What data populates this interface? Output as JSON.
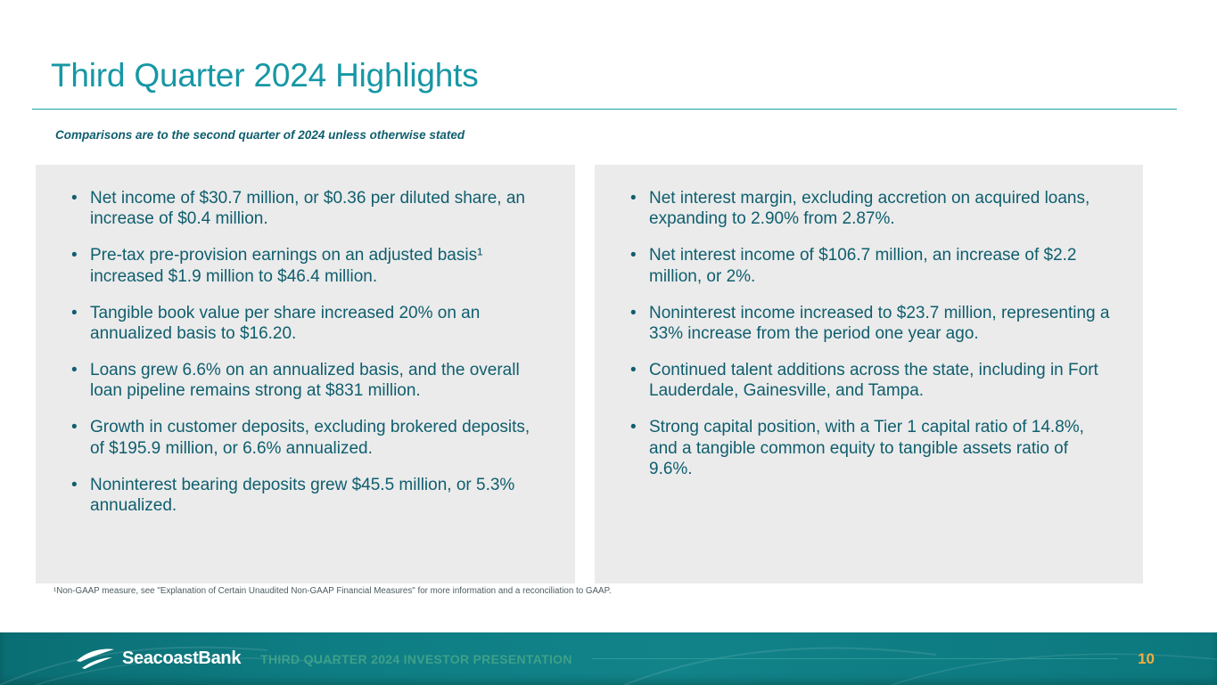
{
  "slide": {
    "title": "Third Quarter 2024 Highlights",
    "subtitle": "Comparisons are to the second quarter of 2024 unless otherwise stated",
    "left_bullets": [
      "Net income of $30.7 million, or $0.36 per diluted share, an increase of $0.4 million.",
      "Pre-tax pre-provision earnings on an adjusted basis¹ increased $1.9 million to $46.4 million.",
      "Tangible book value per share increased 20% on an annualized basis to $16.20.",
      "Loans grew 6.6% on an annualized basis, and the overall loan pipeline remains strong at $831 million.",
      "Growth in customer deposits, excluding brokered deposits, of $195.9 million, or 6.6% annualized.",
      "Noninterest bearing deposits grew $45.5 million, or 5.3% annualized."
    ],
    "right_bullets": [
      "Net interest margin, excluding accretion on acquired loans, expanding to 2.90% from 2.87%.",
      "Net interest income of $106.7 million, an increase of $2.2 million, or 2%.",
      "Noninterest income increased to $23.7 million, representing a 33% increase from the period one year ago.",
      "Continued talent additions across the state, including in Fort Lauderdale, Gainesville, and Tampa.",
      "Strong capital position, with a Tier 1 capital ratio of 14.8%, and a tangible common equity to tangible assets ratio of 9.6%."
    ],
    "footnote": "¹Non-GAAP measure, see \"Explanation of Certain Unaudited Non-GAAP Financial Measures\" for more information and a reconciliation to GAAP."
  },
  "footer": {
    "logo_text": "SeacoastBank",
    "presentation_label": "THIRD QUARTER 2024 INVESTOR PRESENTATION",
    "page_number": "10"
  },
  "colors": {
    "title_teal": "#1697A5",
    "body_teal": "#0F5E6E",
    "box_gray": "#EBEBEB",
    "footer_teal": "#0E7E84",
    "page_number_gold": "#EDAF3E"
  }
}
